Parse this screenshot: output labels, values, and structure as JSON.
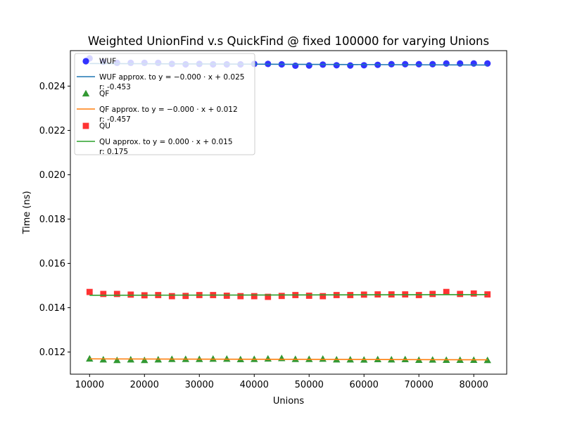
{
  "chart_data": {
    "type": "scatter",
    "title": "Weighted UnionFind v.s QuickFind @ fixed 100000 for varying Unions",
    "xlabel": "Unions",
    "ylabel": "Time (ns)",
    "xlim": [
      6500,
      86000
    ],
    "ylim": [
      0.011,
      0.0256
    ],
    "x_ticks": [
      10000,
      20000,
      30000,
      40000,
      50000,
      60000,
      70000,
      80000
    ],
    "y_ticks": [
      0.012,
      0.014,
      0.016,
      0.018,
      0.02,
      0.022,
      0.024
    ],
    "x_tick_labels": [
      "10000",
      "20000",
      "30000",
      "40000",
      "50000",
      "60000",
      "70000",
      "80000"
    ],
    "y_tick_labels": [
      "0.012",
      "0.014",
      "0.016",
      "0.018",
      "0.020",
      "0.022",
      "0.024"
    ],
    "grid": false,
    "legend_position": "top-left",
    "x": [
      10000,
      12500,
      15000,
      17500,
      20000,
      22500,
      25000,
      27500,
      30000,
      32500,
      35000,
      37500,
      40000,
      42500,
      45000,
      47500,
      50000,
      52500,
      55000,
      57500,
      60000,
      62500,
      65000,
      67500,
      70000,
      72500,
      75000,
      77500,
      80000,
      82500
    ],
    "series": [
      {
        "name": "WUF",
        "marker": "circle",
        "color": "#0000ff",
        "values": [
          0.02525,
          0.0251,
          0.02505,
          0.02505,
          0.02505,
          0.02505,
          0.025,
          0.02498,
          0.025,
          0.02498,
          0.02498,
          0.02498,
          0.025,
          0.025,
          0.02498,
          0.02492,
          0.02493,
          0.02497,
          0.02494,
          0.02493,
          0.02494,
          0.02496,
          0.02499,
          0.02499,
          0.02499,
          0.02499,
          0.02502,
          0.02502,
          0.02502,
          0.02502
        ]
      },
      {
        "name": "QF",
        "marker": "triangle",
        "color": "#008000",
        "values": [
          0.0117,
          0.01166,
          0.01163,
          0.01166,
          0.01163,
          0.01166,
          0.01168,
          0.01168,
          0.01168,
          0.01169,
          0.01169,
          0.01167,
          0.01168,
          0.0117,
          0.01172,
          0.01168,
          0.01168,
          0.01169,
          0.01166,
          0.01166,
          0.01165,
          0.01167,
          0.01166,
          0.01167,
          0.01164,
          0.01165,
          0.01164,
          0.01164,
          0.01164,
          0.01163
        ]
      },
      {
        "name": "QU",
        "marker": "square",
        "color": "#ff0000",
        "values": [
          0.01471,
          0.01462,
          0.01462,
          0.01459,
          0.01456,
          0.01457,
          0.01452,
          0.01453,
          0.01457,
          0.01457,
          0.01454,
          0.01452,
          0.01452,
          0.01449,
          0.01453,
          0.01457,
          0.01454,
          0.01452,
          0.01457,
          0.01457,
          0.01459,
          0.0146,
          0.0146,
          0.0146,
          0.01457,
          0.01462,
          0.01471,
          0.01462,
          0.01464,
          0.0146
        ]
      }
    ],
    "fits": [
      {
        "name": "WUF approx. to y = −0.000 · x + 0.025",
        "r_label": "r: -0.453",
        "color": "#1f77b4",
        "y_start": 0.02502,
        "y_end": 0.02495
      },
      {
        "name": "QF approx. to y = −0.000 · x + 0.012",
        "r_label": "r: -0.457",
        "color": "#ff7f0e",
        "y_start": 0.01169,
        "y_end": 0.01165
      },
      {
        "name": "QU approx. to y = 0.000 · x + 0.015",
        "r_label": "r: 0.175",
        "color": "#2ca02c",
        "y_start": 0.01456,
        "y_end": 0.01459
      }
    ],
    "legend": [
      {
        "label": "WUF"
      },
      {
        "label": "WUF approx. to y = −0.000 · x + 0.025",
        "sub": "r: -0.453"
      },
      {
        "label": "QF"
      },
      {
        "label": "QF approx. to y = −0.000 · x + 0.012",
        "sub": "r: -0.457"
      },
      {
        "label": "QU"
      },
      {
        "label": "QU approx. to y = 0.000 · x + 0.015",
        "sub": "r: 0.175"
      }
    ]
  }
}
